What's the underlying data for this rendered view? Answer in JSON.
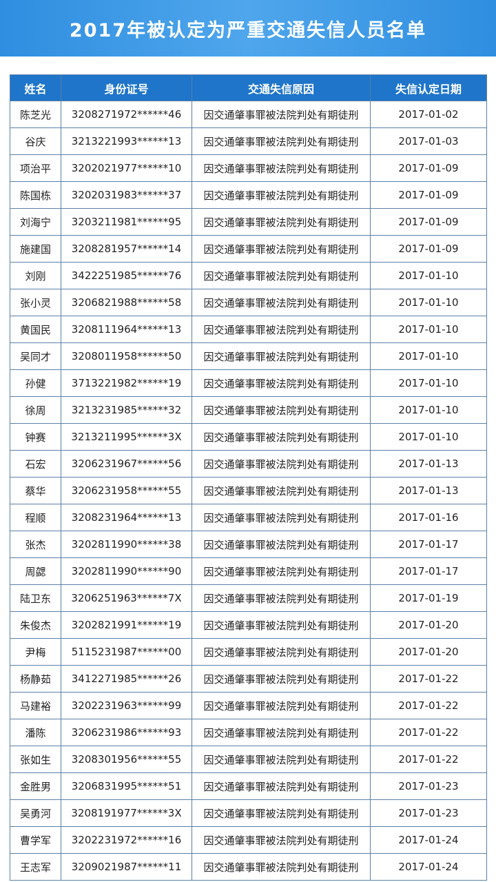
{
  "header": {
    "title": "2017年被认定为严重交通失信人员名单"
  },
  "table": {
    "columns": [
      "姓名",
      "身份证号",
      "交通失信原因",
      "失信认定日期"
    ],
    "rows": [
      [
        "陈芝光",
        "3208271972******46",
        "因交通肇事罪被法院判处有期徒刑",
        "2017-01-02"
      ],
      [
        "谷庆",
        "3213221993******13",
        "因交通肇事罪被法院判处有期徒刑",
        "2017-01-03"
      ],
      [
        "项治平",
        "3202021977******10",
        "因交通肇事罪被法院判处有期徒刑",
        "2017-01-09"
      ],
      [
        "陈国栋",
        "3202031983******37",
        "因交通肇事罪被法院判处有期徒刑",
        "2017-01-09"
      ],
      [
        "刘海宁",
        "3203211981******95",
        "因交通肇事罪被法院判处有期徒刑",
        "2017-01-09"
      ],
      [
        "施建国",
        "3208281957******14",
        "因交通肇事罪被法院判处有期徒刑",
        "2017-01-09"
      ],
      [
        "刘刚",
        "3422251985******76",
        "因交通肇事罪被法院判处有期徒刑",
        "2017-01-10"
      ],
      [
        "张小灵",
        "3206821988******58",
        "因交通肇事罪被法院判处有期徒刑",
        "2017-01-10"
      ],
      [
        "黄国民",
        "3208111964******13",
        "因交通肇事罪被法院判处有期徒刑",
        "2017-01-10"
      ],
      [
        "吴同才",
        "3208011958******50",
        "因交通肇事罪被法院判处有期徒刑",
        "2017-01-10"
      ],
      [
        "孙健",
        "3713221982******19",
        "因交通肇事罪被法院判处有期徒刑",
        "2017-01-10"
      ],
      [
        "徐周",
        "3213231985******32",
        "因交通肇事罪被法院判处有期徒刑",
        "2017-01-10"
      ],
      [
        "钟赛",
        "3213211995******3X",
        "因交通肇事罪被法院判处有期徒刑",
        "2017-01-10"
      ],
      [
        "石宏",
        "3206231967******56",
        "因交通肇事罪被法院判处有期徒刑",
        "2017-01-13"
      ],
      [
        "蔡华",
        "3206231958******55",
        "因交通肇事罪被法院判处有期徒刑",
        "2017-01-13"
      ],
      [
        "程顺",
        "3208231964******13",
        "因交通肇事罪被法院判处有期徒刑",
        "2017-01-16"
      ],
      [
        "张杰",
        "3202811990******38",
        "因交通肇事罪被法院判处有期徒刑",
        "2017-01-17"
      ],
      [
        "周勰",
        "3202811990******90",
        "因交通肇事罪被法院判处有期徒刑",
        "2017-01-17"
      ],
      [
        "陆卫东",
        "3206251963******7X",
        "因交通肇事罪被法院判处有期徒刑",
        "2017-01-19"
      ],
      [
        "朱俊杰",
        "3202821991******19",
        "因交通肇事罪被法院判处有期徒刑",
        "2017-01-20"
      ],
      [
        "尹梅",
        "5115231987******00",
        "因交通肇事罪被法院判处有期徒刑",
        "2017-01-20"
      ],
      [
        "杨静茹",
        "3412271985******26",
        "因交通肇事罪被法院判处有期徒刑",
        "2017-01-22"
      ],
      [
        "马建裕",
        "3202231963******99",
        "因交通肇事罪被法院判处有期徒刑",
        "2017-01-22"
      ],
      [
        "潘陈",
        "3206231986******93",
        "因交通肇事罪被法院判处有期徒刑",
        "2017-01-22"
      ],
      [
        "张如生",
        "3208301956******55",
        "因交通肇事罪被法院判处有期徒刑",
        "2017-01-22"
      ],
      [
        "金胜男",
        "3206831995******51",
        "因交通肇事罪被法院判处有期徒刑",
        "2017-01-23"
      ],
      [
        "吴勇河",
        "3208191977******3X",
        "因交通肇事罪被法院判处有期徒刑",
        "2017-01-23"
      ],
      [
        "曹学军",
        "3202231972******16",
        "因交通肇事罪被法院判处有期徒刑",
        "2017-01-24"
      ],
      [
        "王志军",
        "3209021987******11",
        "因交通肇事罪被法院判处有期徒刑",
        "2017-01-24"
      ]
    ]
  }
}
